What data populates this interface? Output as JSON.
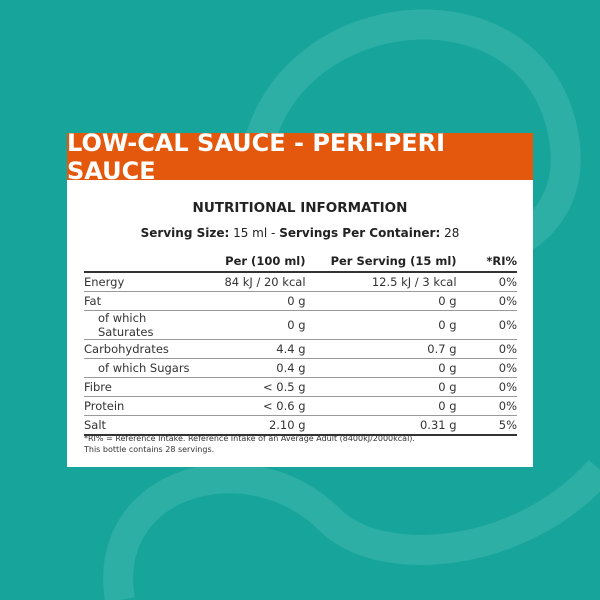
{
  "header": {
    "title": "LOW-CAL SAUCE - PERI-PERI SAUCE"
  },
  "heading": "NUTRITIONAL INFORMATION",
  "serving": {
    "size_label": "Serving Size:",
    "size_value": "15 ml -",
    "per_container_label": "Servings Per Container:",
    "per_container_value": "28"
  },
  "columns": [
    "",
    "Per (100 ml)",
    "Per Serving (15 ml)",
    "*RI%"
  ],
  "rows": [
    {
      "name": "Energy",
      "per100": "84 kJ / 20 kcal",
      "serving": "12.5 kJ / 3 kcal",
      "ri": "0%"
    },
    {
      "name": "Fat",
      "per100": "0 g",
      "serving": "0 g",
      "ri": "0%"
    },
    {
      "name": "of which Saturates",
      "per100": "0 g",
      "serving": "0 g",
      "ri": "0%"
    },
    {
      "name": "Carbohydrates",
      "per100": "4.4 g",
      "serving": "0.7 g",
      "ri": "0%"
    },
    {
      "name": "of which Sugars",
      "per100": "0.4 g",
      "serving": "0 g",
      "ri": "0%"
    },
    {
      "name": "Fibre",
      "per100": "< 0.5 g",
      "serving": "0 g",
      "ri": "0%"
    },
    {
      "name": "Protein",
      "per100": "< 0.6 g",
      "serving": "0 g",
      "ri": "0%"
    },
    {
      "name": "Salt",
      "per100": "2.10 g",
      "serving": "0.31 g",
      "ri": "5%"
    }
  ],
  "footnote": [
    "*RI% = Reference Intake. Reference Intake of an Average Adult (8400kJ/2000kcal).",
    "This bottle contains 28 servings."
  ],
  "colors": {
    "background": "#17a59b",
    "header": "#e4580e"
  }
}
